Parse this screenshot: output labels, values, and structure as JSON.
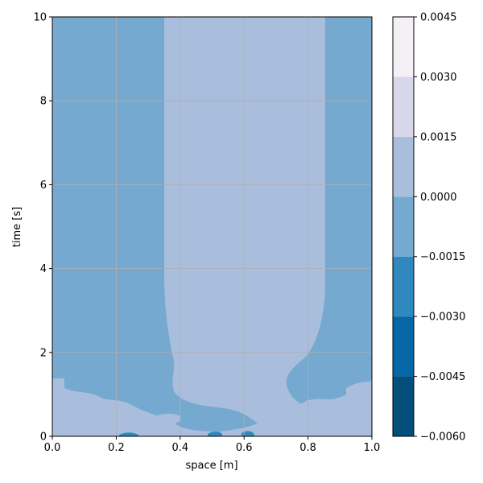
{
  "chart_data": {
    "type": "heatmap",
    "title": "",
    "xlabel": "space [m]",
    "ylabel": "time [s]",
    "xlim": [
      0.0,
      1.0
    ],
    "ylim": [
      0,
      10
    ],
    "x_ticks": [
      "0.0",
      "0.2",
      "0.4",
      "0.6",
      "0.8",
      "1.0"
    ],
    "y_ticks": [
      "0",
      "2",
      "4",
      "6",
      "8",
      "10"
    ],
    "grid": true,
    "colorbar": {
      "levels": [
        -0.006,
        -0.0045,
        -0.003,
        -0.0015,
        0.0,
        0.0015,
        0.003,
        0.0045
      ],
      "tick_labels": [
        "−0.0060",
        "−0.0045",
        "−0.0030",
        "−0.0015",
        "0.0000",
        "0.0015",
        "0.0030",
        "0.0045"
      ],
      "colors": [
        "#034e7b",
        "#0567a5",
        "#2f89bf",
        "#75a9cf",
        "#a9bddc",
        "#d8d7ea",
        "#f5eff6"
      ]
    },
    "regions": [
      {
        "level_index": 3,
        "shape": "background",
        "x_range": [
          0.0,
          1.0
        ],
        "t_range": [
          0,
          10
        ]
      },
      {
        "level_index": 4,
        "shape": "band",
        "x_range": [
          0.36,
          0.86
        ],
        "t_range": [
          0.2,
          10
        ]
      },
      {
        "level_index": 4,
        "shape": "ripples",
        "x_range": [
          0.0,
          1.0
        ],
        "t_range": [
          0,
          1.4
        ]
      },
      {
        "level_index": 2,
        "shape": "spots",
        "x_range": [
          0.45,
          0.62
        ],
        "t_range": [
          0,
          0.2
        ]
      }
    ]
  }
}
